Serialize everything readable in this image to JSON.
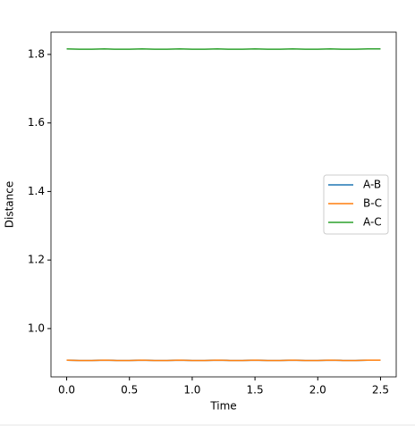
{
  "chart_data": {
    "type": "line",
    "x_label": "Time",
    "y_label": "Distance",
    "x": [
      0,
      0.1,
      0.2,
      0.3,
      0.4,
      0.5,
      0.6,
      0.7,
      0.8,
      0.9,
      1.0,
      1.1,
      1.2,
      1.3,
      1.4,
      1.5,
      1.6,
      1.7,
      1.8,
      1.9,
      2.0,
      2.1,
      2.2,
      2.3,
      2.4,
      2.5
    ],
    "series": [
      {
        "name": "A-B",
        "color": "#1f77b4",
        "values": [
          0.908,
          0.907,
          0.907,
          0.908,
          0.907,
          0.907,
          0.908,
          0.907,
          0.907,
          0.908,
          0.907,
          0.907,
          0.908,
          0.907,
          0.907,
          0.908,
          0.907,
          0.907,
          0.908,
          0.907,
          0.907,
          0.908,
          0.907,
          0.907,
          0.908,
          0.908
        ]
      },
      {
        "name": "B-C",
        "color": "#ff7f0e",
        "values": [
          0.908,
          0.907,
          0.907,
          0.908,
          0.907,
          0.907,
          0.908,
          0.907,
          0.907,
          0.908,
          0.907,
          0.907,
          0.908,
          0.907,
          0.907,
          0.908,
          0.907,
          0.907,
          0.908,
          0.907,
          0.907,
          0.908,
          0.907,
          0.907,
          0.908,
          0.908
        ]
      },
      {
        "name": "A-C",
        "color": "#2ca02c",
        "values": [
          1.816,
          1.815,
          1.815,
          1.816,
          1.815,
          1.815,
          1.816,
          1.815,
          1.815,
          1.816,
          1.815,
          1.815,
          1.816,
          1.815,
          1.815,
          1.816,
          1.815,
          1.815,
          1.816,
          1.815,
          1.815,
          1.816,
          1.815,
          1.815,
          1.816,
          1.816
        ]
      }
    ],
    "xlim": [
      -0.125,
      2.625
    ],
    "xticks": [
      {
        "value": 0,
        "label": "0.0"
      },
      0.5,
      {
        "value": 1,
        "label": "1.0"
      },
      1.5,
      {
        "value": 2,
        "label": "2.0"
      },
      2.5
    ],
    "ylim": [
      0.859,
      1.865
    ],
    "yticks": [
      {
        "value": 1,
        "label": "1.0"
      },
      1.2,
      1.4,
      1.6,
      1.8
    ],
    "grid": false,
    "legend": "right"
  }
}
